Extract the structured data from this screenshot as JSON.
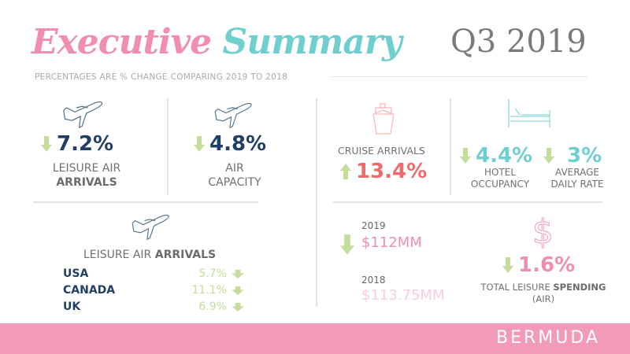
{
  "header": {
    "title_part1": "Executive",
    "title_part2": "Summary",
    "period": "Q3 2019",
    "subtitle": "PERCENTAGES ARE % CHANGE COMPARING 2019 TO 2018"
  },
  "leisure_air": {
    "value": "7.2%",
    "label_line1": "LEISURE AIR",
    "label_line2": "ARRIVALS",
    "direction": "down"
  },
  "air_capacity": {
    "value": "4.8%",
    "label_line1": "AIR",
    "label_line2": "CAPACITY",
    "direction": "down"
  },
  "by_country": {
    "title_regular": "LEISURE AIR ",
    "title_bold": "ARRIVALS",
    "rows": [
      {
        "country": "USA",
        "value": "5.7%"
      },
      {
        "country": "CANADA",
        "value": "11.1%"
      },
      {
        "country": "UK",
        "value": "6.9%"
      }
    ]
  },
  "cruise": {
    "label": "CRUISE ARRIVALS",
    "value": "13.4%",
    "direction": "up"
  },
  "hotel": {
    "occupancy_value": "4.4%",
    "occupancy_line1": "HOTEL",
    "occupancy_line2": "OCCUPANCY",
    "adr_value": "3%",
    "adr_line1": "AVERAGE",
    "adr_line2": "DAILY RATE"
  },
  "spending": {
    "year_2019": "2019",
    "amount_2019": "$112MM",
    "year_2018": "2018",
    "amount_2018": "$113.75MM",
    "change": "1.6%",
    "label_regular": "TOTAL LEISURE ",
    "label_bold": "SPENDING",
    "label_line2": "(AIR)"
  },
  "footer": {
    "brand": "BERMUDA"
  },
  "colors": {
    "pink": "#f08db0",
    "teal": "#6fcfcf",
    "navy": "#1f3f66",
    "green": "#c5dd9a",
    "coral": "#ee6b6b",
    "banner": "#f29bb8"
  }
}
